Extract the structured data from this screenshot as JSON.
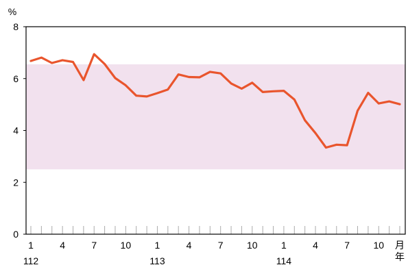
{
  "chart_data": {
    "type": "line",
    "ylabel": "%",
    "ylim": [
      0,
      8
    ],
    "yticks": [
      0,
      2,
      4,
      6,
      8
    ],
    "band": {
      "from": 2.5,
      "to": 6.55,
      "color": "#f2e1ee"
    },
    "x": [
      "112/1",
      "112/2",
      "112/3",
      "112/4",
      "112/5",
      "112/6",
      "112/7",
      "112/8",
      "112/9",
      "112/10",
      "112/11",
      "112/12",
      "113/1",
      "113/2",
      "113/3",
      "113/4",
      "113/5",
      "113/6",
      "113/7",
      "113/8",
      "113/9",
      "113/10",
      "113/11",
      "113/12",
      "114/1",
      "114/2",
      "114/3",
      "114/4",
      "114/5",
      "114/6",
      "114/7",
      "114/8",
      "114/9",
      "114/10",
      "114/11",
      "114/12"
    ],
    "series": [
      {
        "color": "#e9552d",
        "values": [
          6.68,
          6.81,
          6.6,
          6.71,
          6.64,
          5.94,
          6.94,
          6.56,
          6.02,
          5.74,
          5.34,
          5.31,
          5.44,
          5.58,
          6.16,
          6.06,
          6.05,
          6.26,
          6.2,
          5.81,
          5.61,
          5.84,
          5.48,
          5.51,
          5.53,
          5.19,
          4.39,
          3.9,
          3.34,
          3.45,
          3.43,
          4.76,
          5.45,
          5.04,
          5.12,
          5.01
        ]
      }
    ],
    "month_ticks": [
      {
        "index": 0,
        "label": "1"
      },
      {
        "index": 3,
        "label": "4"
      },
      {
        "index": 6,
        "label": "7"
      },
      {
        "index": 9,
        "label": "10"
      },
      {
        "index": 12,
        "label": "1"
      },
      {
        "index": 15,
        "label": "4"
      },
      {
        "index": 18,
        "label": "7"
      },
      {
        "index": 21,
        "label": "10"
      },
      {
        "index": 24,
        "label": "1"
      },
      {
        "index": 27,
        "label": "4"
      },
      {
        "index": 30,
        "label": "7"
      },
      {
        "index": 33,
        "label": "10"
      }
    ],
    "year_labels": [
      {
        "index": 0,
        "label": "112"
      },
      {
        "index": 12,
        "label": "113"
      },
      {
        "index": 24,
        "label": "114"
      }
    ],
    "x_unit_month": "月",
    "x_unit_year": "年",
    "grid": false,
    "legend": "none"
  }
}
